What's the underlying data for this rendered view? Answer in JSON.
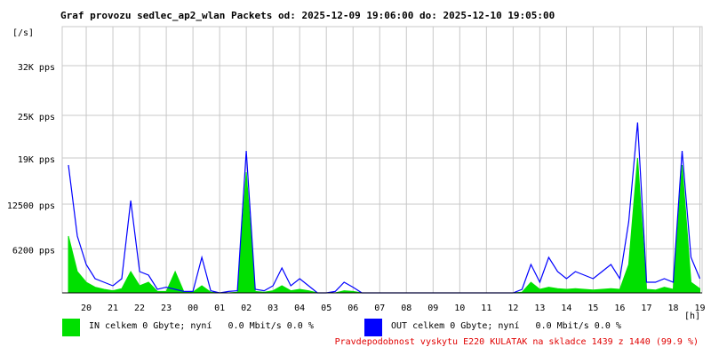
{
  "chart_data": {
    "type": "line",
    "title": "Graf provozu sedlec_ap2_wlan Packets od: 2025-12-09 19:06:00 do: 2025-12-10 19:05:00",
    "y_unit": "[/s]",
    "x_unit": "[h]",
    "footer": "Pravdepodobnost vyskytu E220 KULATAK na skladce 1439 z 1440 (99.9 %)",
    "grid": true,
    "xlim": [
      "2025-12-09 19:06:00",
      "2025-12-10 19:05:00"
    ],
    "ylim": [
      0,
      37500
    ],
    "yticks": [
      {
        "value": 6200,
        "label": "6200 pps"
      },
      {
        "value": 12500,
        "label": "12500 pps"
      },
      {
        "value": 19000,
        "label": "19K pps"
      },
      {
        "value": 25000,
        "label": "25K pps"
      },
      {
        "value": 32000,
        "label": "32K pps"
      }
    ],
    "xticks": [
      {
        "value": "2025-12-09 20:00",
        "label": "20"
      },
      {
        "value": "2025-12-09 21:00",
        "label": "21"
      },
      {
        "value": "2025-12-09 22:00",
        "label": "22"
      },
      {
        "value": "2025-12-09 23:00",
        "label": "23"
      },
      {
        "value": "2025-12-10 00:00",
        "label": "00"
      },
      {
        "value": "2025-12-10 01:00",
        "label": "01"
      },
      {
        "value": "2025-12-10 02:00",
        "label": "02"
      },
      {
        "value": "2025-12-10 03:00",
        "label": "03"
      },
      {
        "value": "2025-12-10 04:00",
        "label": "04"
      },
      {
        "value": "2025-12-10 05:00",
        "label": "05"
      },
      {
        "value": "2025-12-10 06:00",
        "label": "06"
      },
      {
        "value": "2025-12-10 07:00",
        "label": "07"
      },
      {
        "value": "2025-12-10 08:00",
        "label": "08"
      },
      {
        "value": "2025-12-10 09:00",
        "label": "09"
      },
      {
        "value": "2025-12-10 10:00",
        "label": "10"
      },
      {
        "value": "2025-12-10 11:00",
        "label": "11"
      },
      {
        "value": "2025-12-10 12:00",
        "label": "12"
      },
      {
        "value": "2025-12-10 13:00",
        "label": "13"
      },
      {
        "value": "2025-12-10 14:00",
        "label": "14"
      },
      {
        "value": "2025-12-10 15:00",
        "label": "15"
      },
      {
        "value": "2025-12-10 16:00",
        "label": "16"
      },
      {
        "value": "2025-12-10 17:00",
        "label": "17"
      },
      {
        "value": "2025-12-10 18:00",
        "label": "18"
      },
      {
        "value": "2025-12-10 19:00",
        "label": "19"
      }
    ],
    "x": [
      "2025-12-09 19:20",
      "2025-12-09 19:40",
      "2025-12-09 20:00",
      "2025-12-09 20:20",
      "2025-12-09 20:40",
      "2025-12-09 21:00",
      "2025-12-09 21:20",
      "2025-12-09 21:40",
      "2025-12-09 22:00",
      "2025-12-09 22:20",
      "2025-12-09 22:40",
      "2025-12-09 23:00",
      "2025-12-09 23:20",
      "2025-12-09 23:40",
      "2025-12-10 00:00",
      "2025-12-10 00:20",
      "2025-12-10 00:40",
      "2025-12-10 01:00",
      "2025-12-10 01:20",
      "2025-12-10 01:40",
      "2025-12-10 02:00",
      "2025-12-10 02:20",
      "2025-12-10 02:40",
      "2025-12-10 03:00",
      "2025-12-10 03:20",
      "2025-12-10 03:40",
      "2025-12-10 04:00",
      "2025-12-10 04:20",
      "2025-12-10 04:40",
      "2025-12-10 05:00",
      "2025-12-10 05:20",
      "2025-12-10 05:40",
      "2025-12-10 06:00",
      "2025-12-10 06:20",
      "2025-12-10 06:40",
      "2025-12-10 07:00",
      "2025-12-10 07:20",
      "2025-12-10 07:40",
      "2025-12-10 08:00",
      "2025-12-10 08:20",
      "2025-12-10 08:40",
      "2025-12-10 09:00",
      "2025-12-10 09:20",
      "2025-12-10 09:40",
      "2025-12-10 10:00",
      "2025-12-10 10:20",
      "2025-12-10 10:40",
      "2025-12-10 11:00",
      "2025-12-10 11:20",
      "2025-12-10 11:40",
      "2025-12-10 12:00",
      "2025-12-10 12:20",
      "2025-12-10 12:40",
      "2025-12-10 13:00",
      "2025-12-10 13:20",
      "2025-12-10 13:40",
      "2025-12-10 14:00",
      "2025-12-10 14:20",
      "2025-12-10 14:40",
      "2025-12-10 15:00",
      "2025-12-10 15:20",
      "2025-12-10 15:40",
      "2025-12-10 16:00",
      "2025-12-10 16:20",
      "2025-12-10 16:40",
      "2025-12-10 17:00",
      "2025-12-10 17:20",
      "2025-12-10 17:40",
      "2025-12-10 18:00",
      "2025-12-10 18:20",
      "2025-12-10 18:40",
      "2025-12-10 19:00"
    ],
    "series": [
      {
        "name": "IN celkem 0 Gbyte; nyní   0.0 Mbit/s 0.0 %",
        "color": "#00e000",
        "area": true,
        "values": [
          8000,
          3000,
          1500,
          800,
          500,
          300,
          600,
          3000,
          1000,
          1500,
          200,
          200,
          3000,
          100,
          100,
          1000,
          100,
          0,
          0,
          100,
          17000,
          200,
          100,
          300,
          1000,
          300,
          500,
          300,
          0,
          0,
          0,
          300,
          200,
          0,
          0,
          0,
          0,
          0,
          0,
          0,
          0,
          0,
          0,
          0,
          0,
          0,
          0,
          0,
          0,
          0,
          0,
          100,
          1500,
          500,
          800,
          600,
          500,
          600,
          500,
          400,
          500,
          600,
          500,
          4000,
          19000,
          500,
          400,
          800,
          500,
          18000,
          1500,
          600
        ]
      },
      {
        "name": "OUT celkem 0 Gbyte; nyní   0.0 Mbit/s 0.0 %",
        "color": "#0000ff",
        "area": false,
        "values": [
          18000,
          8000,
          4000,
          2000,
          1500,
          1000,
          2000,
          13000,
          3000,
          2500,
          500,
          800,
          500,
          200,
          200,
          5000,
          300,
          0,
          200,
          300,
          20000,
          500,
          300,
          1000,
          3500,
          1000,
          2000,
          1000,
          0,
          0,
          200,
          1500,
          800,
          0,
          0,
          0,
          0,
          0,
          0,
          0,
          0,
          0,
          0,
          0,
          0,
          0,
          0,
          0,
          0,
          0,
          0,
          500,
          4000,
          1500,
          5000,
          3000,
          2000,
          3000,
          2500,
          2000,
          3000,
          4000,
          2000,
          10000,
          24000,
          1500,
          1500,
          2000,
          1500,
          20000,
          5000,
          2000
        ]
      }
    ]
  }
}
